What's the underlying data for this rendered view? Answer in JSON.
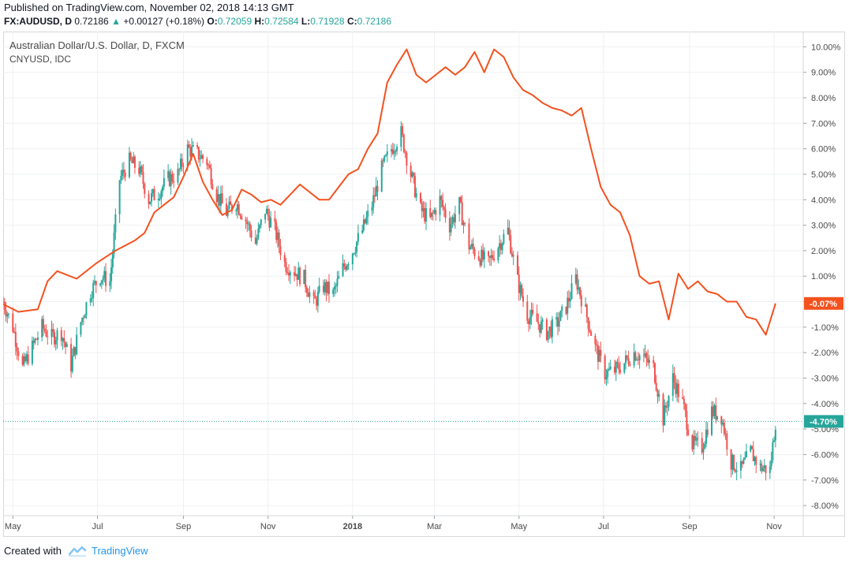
{
  "header": {
    "published": "Published on TradingView.com, November 02, 2018 14:13 GMT",
    "symbol": "FX:AUDUSD, D",
    "last": "0.72186",
    "arrow": "▲",
    "change": "+0.00127 (+0.18%)",
    "o_label": "O:",
    "o_value": "0.72059",
    "h_label": "H:",
    "h_value": "0.72584",
    "l_label": "L:",
    "l_value": "0.71928",
    "c_label": "C:",
    "c_value": "0.72186"
  },
  "legend": {
    "main": "Australian Dollar/U.S. Dollar, D, FXCM",
    "compare": "CNYUSD, IDC"
  },
  "footer": {
    "created_with": "Created with",
    "brand": "TradingView"
  },
  "colors": {
    "up": "#26a69a",
    "down": "#ef5350",
    "compare": "#f4511e",
    "grid": "#eef0f3",
    "axis_text": "#4a4a4a"
  },
  "chart_data": {
    "type": "line",
    "ylabel": "",
    "y_axis": {
      "ylim": [
        -8.4,
        10.6
      ],
      "tick_labels": [
        "10.00%",
        "9.00%",
        "8.00%",
        "7.00%",
        "6.00%",
        "5.00%",
        "4.00%",
        "3.00%",
        "2.00%",
        "1.00%",
        "0.00%",
        "-1.00%",
        "-2.00%",
        "-3.00%",
        "-4.00%",
        "-5.00%",
        "-6.00%",
        "-7.00%",
        "-8.00%"
      ],
      "ticks": [
        10,
        9,
        8,
        7,
        6,
        5,
        4,
        3,
        2,
        1,
        0,
        -1,
        -2,
        -3,
        -4,
        -5,
        -6,
        -7,
        -8
      ],
      "scale": "percent"
    },
    "x_axis": {
      "range": [
        "2017-04-24",
        "2018-11-22"
      ],
      "ticks": [
        {
          "label": "May",
          "date": "2017-05-01",
          "bold": false
        },
        {
          "label": "Jul",
          "date": "2017-07-01",
          "bold": false
        },
        {
          "label": "Sep",
          "date": "2017-09-01",
          "bold": false
        },
        {
          "label": "Nov",
          "date": "2017-11-01",
          "bold": false
        },
        {
          "label": "2018",
          "date": "2018-01-01",
          "bold": true
        },
        {
          "label": "Mar",
          "date": "2018-03-01",
          "bold": false
        },
        {
          "label": "May",
          "date": "2018-05-01",
          "bold": false
        },
        {
          "label": "Jul",
          "date": "2018-07-01",
          "bold": false
        },
        {
          "label": "Sep",
          "date": "2018-09-01",
          "bold": false
        },
        {
          "label": "Nov",
          "date": "2018-11-01",
          "bold": false
        }
      ]
    },
    "grid": true,
    "series": [
      {
        "name": "Australian Dollar/U.S. Dollar, D, FXCM",
        "style": "candles",
        "last_label": "-4.70%",
        "last_value": -4.7,
        "points": [
          {
            "x": "2017-04-24",
            "y": 0.0
          },
          {
            "x": "2017-05-01",
            "y": -1.0
          },
          {
            "x": "2017-05-08",
            "y": -2.6
          },
          {
            "x": "2017-05-15",
            "y": -1.8
          },
          {
            "x": "2017-05-22",
            "y": -1.0
          },
          {
            "x": "2017-05-29",
            "y": -1.4
          },
          {
            "x": "2017-06-05",
            "y": -1.2
          },
          {
            "x": "2017-06-12",
            "y": -2.5
          },
          {
            "x": "2017-06-19",
            "y": -0.8
          },
          {
            "x": "2017-06-26",
            "y": 0.4
          },
          {
            "x": "2017-07-03",
            "y": 1.0
          },
          {
            "x": "2017-07-10",
            "y": 0.8
          },
          {
            "x": "2017-07-17",
            "y": 4.8
          },
          {
            "x": "2017-07-24",
            "y": 5.5
          },
          {
            "x": "2017-07-31",
            "y": 5.2
          },
          {
            "x": "2017-08-07",
            "y": 4.0
          },
          {
            "x": "2017-08-14",
            "y": 4.3
          },
          {
            "x": "2017-08-21",
            "y": 4.8
          },
          {
            "x": "2017-08-28",
            "y": 5.0
          },
          {
            "x": "2017-09-04",
            "y": 6.0
          },
          {
            "x": "2017-09-11",
            "y": 5.8
          },
          {
            "x": "2017-09-18",
            "y": 5.5
          },
          {
            "x": "2017-09-25",
            "y": 4.2
          },
          {
            "x": "2017-10-02",
            "y": 3.5
          },
          {
            "x": "2017-10-09",
            "y": 3.9
          },
          {
            "x": "2017-10-16",
            "y": 3.2
          },
          {
            "x": "2017-10-23",
            "y": 2.3
          },
          {
            "x": "2017-10-30",
            "y": 3.6
          },
          {
            "x": "2017-11-06",
            "y": 2.8
          },
          {
            "x": "2017-11-13",
            "y": 1.5
          },
          {
            "x": "2017-11-20",
            "y": 1.2
          },
          {
            "x": "2017-11-27",
            "y": 0.9
          },
          {
            "x": "2017-12-04",
            "y": -0.1
          },
          {
            "x": "2017-12-11",
            "y": 0.6
          },
          {
            "x": "2017-12-18",
            "y": 0.3
          },
          {
            "x": "2017-12-25",
            "y": 1.3
          },
          {
            "x": "2018-01-01",
            "y": 2.0
          },
          {
            "x": "2018-01-08",
            "y": 2.8
          },
          {
            "x": "2018-01-15",
            "y": 3.8
          },
          {
            "x": "2018-01-22",
            "y": 5.2
          },
          {
            "x": "2018-01-29",
            "y": 6.0
          },
          {
            "x": "2018-02-05",
            "y": 6.6
          },
          {
            "x": "2018-02-12",
            "y": 5.0
          },
          {
            "x": "2018-02-19",
            "y": 3.6
          },
          {
            "x": "2018-02-26",
            "y": 3.2
          },
          {
            "x": "2018-03-05",
            "y": 4.0
          },
          {
            "x": "2018-03-12",
            "y": 3.0
          },
          {
            "x": "2018-03-19",
            "y": 3.8
          },
          {
            "x": "2018-03-26",
            "y": 2.2
          },
          {
            "x": "2018-04-02",
            "y": 1.8
          },
          {
            "x": "2018-04-09",
            "y": 1.5
          },
          {
            "x": "2018-04-16",
            "y": 2.2
          },
          {
            "x": "2018-04-23",
            "y": 2.8
          },
          {
            "x": "2018-04-30",
            "y": 0.8
          },
          {
            "x": "2018-05-07",
            "y": -0.5
          },
          {
            "x": "2018-05-14",
            "y": -0.8
          },
          {
            "x": "2018-05-21",
            "y": -1.2
          },
          {
            "x": "2018-05-28",
            "y": -0.9
          },
          {
            "x": "2018-06-04",
            "y": -0.2
          },
          {
            "x": "2018-06-11",
            "y": 0.9
          },
          {
            "x": "2018-06-18",
            "y": -0.4
          },
          {
            "x": "2018-06-25",
            "y": -1.8
          },
          {
            "x": "2018-07-02",
            "y": -2.8
          },
          {
            "x": "2018-07-09",
            "y": -2.7
          },
          {
            "x": "2018-07-16",
            "y": -2.4
          },
          {
            "x": "2018-07-23",
            "y": -2.0
          },
          {
            "x": "2018-07-30",
            "y": -2.2
          },
          {
            "x": "2018-08-06",
            "y": -2.6
          },
          {
            "x": "2018-08-13",
            "y": -4.6
          },
          {
            "x": "2018-08-20",
            "y": -3.0
          },
          {
            "x": "2018-08-27",
            "y": -4.0
          },
          {
            "x": "2018-09-03",
            "y": -5.6
          },
          {
            "x": "2018-09-10",
            "y": -5.7
          },
          {
            "x": "2018-09-17",
            "y": -4.3
          },
          {
            "x": "2018-09-24",
            "y": -4.5
          },
          {
            "x": "2018-10-01",
            "y": -6.3
          },
          {
            "x": "2018-10-08",
            "y": -6.6
          },
          {
            "x": "2018-10-15",
            "y": -5.9
          },
          {
            "x": "2018-10-22",
            "y": -6.5
          },
          {
            "x": "2018-10-29",
            "y": -6.6
          },
          {
            "x": "2018-11-02",
            "y": -4.7
          }
        ]
      },
      {
        "name": "CNYUSD, IDC",
        "style": "line",
        "last_label": "-0.07%",
        "last_value": -0.07,
        "points": [
          {
            "x": "2017-04-24",
            "y": -0.1
          },
          {
            "x": "2017-05-05",
            "y": -0.4
          },
          {
            "x": "2017-05-19",
            "y": -0.3
          },
          {
            "x": "2017-05-26",
            "y": 0.8
          },
          {
            "x": "2017-06-02",
            "y": 1.2
          },
          {
            "x": "2017-06-16",
            "y": 0.9
          },
          {
            "x": "2017-06-30",
            "y": 1.5
          },
          {
            "x": "2017-07-14",
            "y": 2.0
          },
          {
            "x": "2017-07-28",
            "y": 2.4
          },
          {
            "x": "2017-08-04",
            "y": 2.7
          },
          {
            "x": "2017-08-11",
            "y": 3.5
          },
          {
            "x": "2017-08-18",
            "y": 3.8
          },
          {
            "x": "2017-08-25",
            "y": 4.1
          },
          {
            "x": "2017-09-01",
            "y": 4.9
          },
          {
            "x": "2017-09-08",
            "y": 5.8
          },
          {
            "x": "2017-09-15",
            "y": 4.7
          },
          {
            "x": "2017-09-22",
            "y": 4.0
          },
          {
            "x": "2017-09-29",
            "y": 3.4
          },
          {
            "x": "2017-10-06",
            "y": 3.6
          },
          {
            "x": "2017-10-13",
            "y": 4.4
          },
          {
            "x": "2017-10-20",
            "y": 4.2
          },
          {
            "x": "2017-10-27",
            "y": 3.9
          },
          {
            "x": "2017-11-03",
            "y": 4.0
          },
          {
            "x": "2017-11-10",
            "y": 3.8
          },
          {
            "x": "2017-11-17",
            "y": 4.2
          },
          {
            "x": "2017-11-24",
            "y": 4.6
          },
          {
            "x": "2017-12-01",
            "y": 4.3
          },
          {
            "x": "2017-12-08",
            "y": 4.0
          },
          {
            "x": "2017-12-15",
            "y": 4.0
          },
          {
            "x": "2017-12-22",
            "y": 4.5
          },
          {
            "x": "2017-12-29",
            "y": 5.0
          },
          {
            "x": "2018-01-05",
            "y": 5.2
          },
          {
            "x": "2018-01-12",
            "y": 6.0
          },
          {
            "x": "2018-01-19",
            "y": 6.6
          },
          {
            "x": "2018-01-26",
            "y": 8.6
          },
          {
            "x": "2018-02-02",
            "y": 9.3
          },
          {
            "x": "2018-02-09",
            "y": 9.9
          },
          {
            "x": "2018-02-16",
            "y": 8.9
          },
          {
            "x": "2018-02-23",
            "y": 8.6
          },
          {
            "x": "2018-03-02",
            "y": 8.9
          },
          {
            "x": "2018-03-09",
            "y": 9.2
          },
          {
            "x": "2018-03-16",
            "y": 8.9
          },
          {
            "x": "2018-03-23",
            "y": 9.2
          },
          {
            "x": "2018-03-30",
            "y": 9.8
          },
          {
            "x": "2018-04-06",
            "y": 9.0
          },
          {
            "x": "2018-04-13",
            "y": 9.9
          },
          {
            "x": "2018-04-20",
            "y": 9.6
          },
          {
            "x": "2018-04-27",
            "y": 8.8
          },
          {
            "x": "2018-05-04",
            "y": 8.3
          },
          {
            "x": "2018-05-11",
            "y": 8.1
          },
          {
            "x": "2018-05-18",
            "y": 7.8
          },
          {
            "x": "2018-05-25",
            "y": 7.6
          },
          {
            "x": "2018-06-01",
            "y": 7.5
          },
          {
            "x": "2018-06-08",
            "y": 7.3
          },
          {
            "x": "2018-06-15",
            "y": 7.6
          },
          {
            "x": "2018-06-22",
            "y": 6.0
          },
          {
            "x": "2018-06-29",
            "y": 4.5
          },
          {
            "x": "2018-07-06",
            "y": 3.8
          },
          {
            "x": "2018-07-13",
            "y": 3.5
          },
          {
            "x": "2018-07-20",
            "y": 2.6
          },
          {
            "x": "2018-07-27",
            "y": 1.0
          },
          {
            "x": "2018-08-03",
            "y": 0.7
          },
          {
            "x": "2018-08-10",
            "y": 0.8
          },
          {
            "x": "2018-08-17",
            "y": -0.7
          },
          {
            "x": "2018-08-24",
            "y": 1.1
          },
          {
            "x": "2018-08-31",
            "y": 0.5
          },
          {
            "x": "2018-09-07",
            "y": 0.8
          },
          {
            "x": "2018-09-14",
            "y": 0.4
          },
          {
            "x": "2018-09-21",
            "y": 0.3
          },
          {
            "x": "2018-09-28",
            "y": 0.0
          },
          {
            "x": "2018-10-05",
            "y": 0.0
          },
          {
            "x": "2018-10-12",
            "y": -0.6
          },
          {
            "x": "2018-10-19",
            "y": -0.7
          },
          {
            "x": "2018-10-26",
            "y": -1.3
          },
          {
            "x": "2018-11-02",
            "y": -0.07
          }
        ]
      }
    ]
  }
}
